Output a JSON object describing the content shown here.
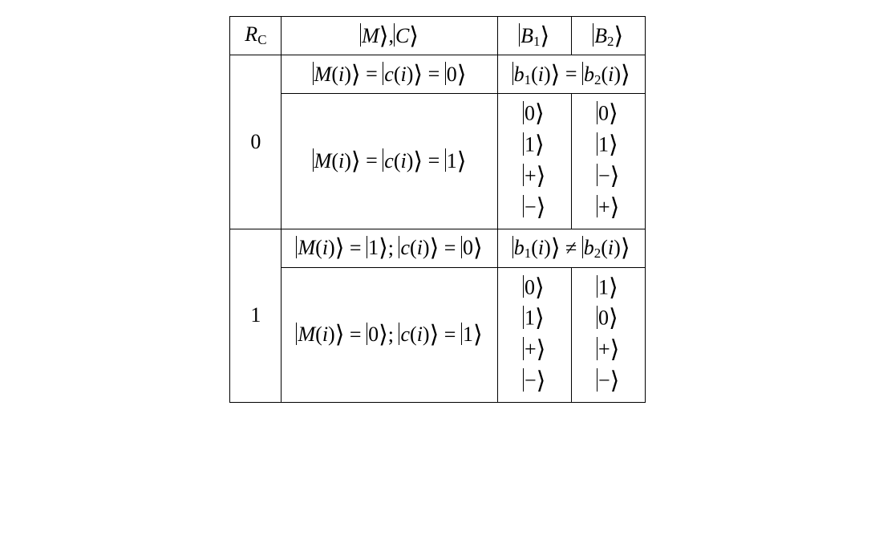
{
  "table": {
    "border_color": "#000000",
    "background_color": "#ffffff",
    "font_family": "Times New Roman",
    "base_fontsize_pt": 20,
    "columns": [
      "R_C",
      "|M⟩,|C⟩",
      "|B1⟩",
      "|B2⟩"
    ],
    "header": {
      "rc": "R",
      "rc_sub": "C",
      "mc_M": "M",
      "mc_C": "C",
      "b1": "B",
      "b1_sub": "1",
      "b2": "B",
      "b2_sub": "2"
    },
    "groups": [
      {
        "rc_value": "0",
        "condition_row": {
          "mc": "|M(i)⟩ = |c(i)⟩ = |0⟩",
          "mc_parts": {
            "M": "M",
            "c": "c",
            "arg": "i",
            "rhs": "0"
          },
          "b_relation": "|b1(i)⟩ = |b2(i)⟩",
          "b_parts": {
            "b1": "b",
            "b1_sub": "1",
            "b2": "b",
            "b2_sub": "2",
            "arg": "i",
            "rel": "="
          }
        },
        "state_row": {
          "mc": "|M(i)⟩ = |c(i)⟩ = |1⟩",
          "mc_parts": {
            "M": "M",
            "c": "c",
            "arg": "i",
            "rhs": "1"
          },
          "b1_states": [
            "0",
            "1",
            "+",
            "−"
          ],
          "b2_states": [
            "0",
            "1",
            "−",
            "+"
          ]
        }
      },
      {
        "rc_value": "1",
        "condition_row": {
          "mc": "|M(i)⟩ = |1⟩; |c(i)⟩ = |0⟩",
          "mc_parts": {
            "M": "M",
            "Mrhs": "1",
            "c": "c",
            "crhs": "0",
            "arg": "i",
            "sep": ";"
          },
          "b_relation": "|b1(i)⟩ ≠ |b2(i)⟩",
          "b_parts": {
            "b1": "b",
            "b1_sub": "1",
            "b2": "b",
            "b2_sub": "2",
            "arg": "i",
            "rel": "≠"
          }
        },
        "state_row": {
          "mc": "|M(i)⟩ = |0⟩; |c(i)⟩ = |1⟩",
          "mc_parts": {
            "M": "M",
            "Mrhs": "0",
            "c": "c",
            "crhs": "1",
            "arg": "i",
            "sep": ";"
          },
          "b1_states": [
            "0",
            "1",
            "+",
            "−"
          ],
          "b2_states": [
            "1",
            "0",
            "+",
            "−"
          ]
        }
      }
    ]
  }
}
